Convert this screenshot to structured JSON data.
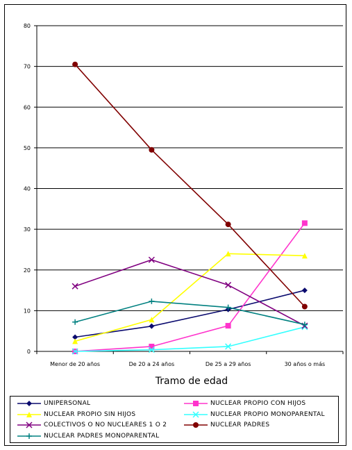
{
  "chart_data": {
    "type": "line",
    "title": "",
    "xlabel": "Tramo de edad",
    "ylabel": "",
    "ylim": [
      0,
      80
    ],
    "yticks": [
      "0",
      "10",
      "20",
      "30",
      "40",
      "50",
      "60",
      "70",
      "80"
    ],
    "grid": true,
    "legend_position": "bottom",
    "categories": [
      "Menor de 20 años",
      "De 20 a 24 años",
      "De 25 a 29 años",
      "30 años o más"
    ],
    "series": [
      {
        "name": "UNIPERSONAL",
        "color": "#0a0a6e",
        "marker": "diamond",
        "values": [
          3.5,
          6.2,
          10.3,
          15.0
        ]
      },
      {
        "name": "NUCLEAR PROPIO CON HIJOS",
        "color": "#ff33cc",
        "marker": "square",
        "values": [
          0.0,
          1.2,
          6.3,
          31.5
        ]
      },
      {
        "name": "NUCLEAR PROPIO SIN HIJOS",
        "color": "#ffff00",
        "marker": "triangle",
        "values": [
          2.5,
          7.8,
          24.0,
          23.5
        ]
      },
      {
        "name": "NUCLEAR PROPIO MONOPARENTAL",
        "color": "#33ffff",
        "marker": "x",
        "values": [
          0.0,
          0.4,
          1.2,
          6.0
        ]
      },
      {
        "name": "COLECTIVOS O NO NUCLEARES 1 O 2",
        "color": "#800080",
        "marker": "x",
        "values": [
          16.0,
          22.5,
          16.3,
          6.3
        ]
      },
      {
        "name": "NUCLEAR PADRES",
        "color": "#800000",
        "marker": "circle",
        "values": [
          70.5,
          49.5,
          31.2,
          11.0
        ]
      },
      {
        "name": "NUCLEAR PADRES MONOPARENTAL",
        "color": "#008080",
        "marker": "plus",
        "values": [
          7.2,
          12.3,
          10.8,
          6.6
        ]
      }
    ]
  }
}
